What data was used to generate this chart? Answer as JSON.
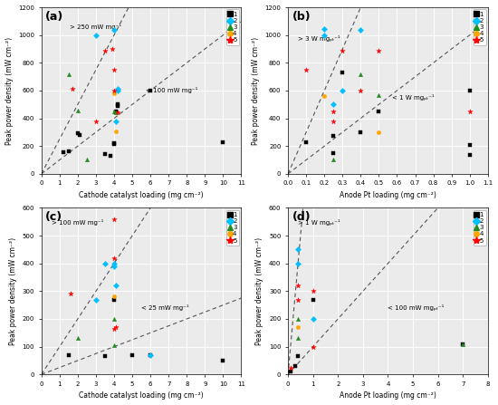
{
  "panels": [
    {
      "label": "(a)",
      "xlabel": "Cathode catalyst loading (mg cm-2)",
      "ylabel": "Peak power density (mW cm-2)",
      "xlim": [
        0,
        11
      ],
      "ylim": [
        0,
        1200
      ],
      "xticks": [
        0,
        1,
        2,
        3,
        4,
        5,
        6,
        7,
        8,
        9,
        10,
        11
      ],
      "yticks": [
        0,
        200,
        400,
        600,
        800,
        1000,
        1200
      ],
      "annotation_high": "> 250 mW mg-1",
      "annotation_low": "< 100 mW mg-1",
      "slope_high": 250,
      "slope_low": 100,
      "ann_high_subscript": false,
      "series": {
        "1": {
          "color": "#000000",
          "marker": "s",
          "data": [
            [
              1.2,
              155
            ],
            [
              1.5,
              165
            ],
            [
              2.0,
              290
            ],
            [
              2.1,
              280
            ],
            [
              3.5,
              140
            ],
            [
              3.8,
              130
            ],
            [
              4.0,
              220
            ],
            [
              4.0,
              215
            ],
            [
              4.1,
              440
            ],
            [
              4.1,
              450
            ],
            [
              4.2,
              490
            ],
            [
              4.2,
              500
            ],
            [
              6.0,
              600
            ],
            [
              10.0,
              225
            ]
          ]
        },
        "2": {
          "color": "#00bfff",
          "marker": "D",
          "data": [
            [
              3.0,
              1000
            ],
            [
              4.0,
              1040
            ],
            [
              4.1,
              380
            ],
            [
              4.2,
              600
            ],
            [
              4.2,
              610
            ]
          ]
        },
        "3": {
          "color": "#228B22",
          "marker": "^",
          "data": [
            [
              1.5,
              720
            ],
            [
              2.0,
              455
            ],
            [
              2.5,
              105
            ],
            [
              4.0,
              450
            ],
            [
              4.1,
              440
            ]
          ]
        },
        "4": {
          "color": "#FFA500",
          "marker": "o",
          "data": [
            [
              4.0,
              580
            ],
            [
              4.1,
              305
            ]
          ]
        },
        "5": {
          "color": "#ff0000",
          "marker": "*",
          "data": [
            [
              1.7,
              615
            ],
            [
              3.0,
              380
            ],
            [
              3.5,
              890
            ],
            [
              3.9,
              900
            ],
            [
              4.0,
              600
            ],
            [
              4.0,
              750
            ],
            [
              4.2,
              440
            ]
          ]
        }
      }
    },
    {
      "label": "(b)",
      "xlabel": "Anode Pt loading (mg cm-2)",
      "ylabel": "Peak power density (mW cm-2)",
      "xlim": [
        0.0,
        1.1
      ],
      "ylim": [
        0,
        1200
      ],
      "xticks": [
        0.0,
        0.1,
        0.2,
        0.3,
        0.4,
        0.5,
        0.6,
        0.7,
        0.8,
        0.9,
        1.0,
        1.1
      ],
      "yticks": [
        0,
        200,
        400,
        600,
        800,
        1000,
        1200
      ],
      "annotation_high": "> 3 W mgPt-1",
      "annotation_low": "< 1 W mgPt-1",
      "slope_high": 3000,
      "slope_low": 1000,
      "ann_high_subscript": true,
      "series": {
        "1": {
          "color": "#000000",
          "marker": "s",
          "data": [
            [
              0.1,
              225
            ],
            [
              0.25,
              270
            ],
            [
              0.25,
              150
            ],
            [
              0.3,
              730
            ],
            [
              0.4,
              300
            ],
            [
              0.5,
              450
            ],
            [
              1.0,
              600
            ],
            [
              1.0,
              210
            ],
            [
              1.0,
              135
            ]
          ]
        },
        "2": {
          "color": "#00bfff",
          "marker": "D",
          "data": [
            [
              0.2,
              1000
            ],
            [
              0.2,
              1045
            ],
            [
              0.25,
              500
            ],
            [
              0.3,
              600
            ],
            [
              0.4,
              1040
            ]
          ]
        },
        "3": {
          "color": "#228B22",
          "marker": "^",
          "data": [
            [
              0.25,
              105
            ],
            [
              0.4,
              720
            ],
            [
              0.5,
              570
            ]
          ]
        },
        "4": {
          "color": "#FFA500",
          "marker": "o",
          "data": [
            [
              0.2,
              560
            ],
            [
              0.5,
              300
            ]
          ]
        },
        "5": {
          "color": "#ff0000",
          "marker": "*",
          "data": [
            [
              0.1,
              750
            ],
            [
              0.25,
              450
            ],
            [
              0.25,
              380
            ],
            [
              0.3,
              890
            ],
            [
              0.4,
              600
            ],
            [
              0.5,
              890
            ],
            [
              1.0,
              450
            ]
          ]
        }
      }
    },
    {
      "label": "(c)",
      "xlabel": "Cathode catalyst loading (mg cm-2)",
      "ylabel": "Peak power density (mW cm-2)",
      "xlim": [
        0,
        11
      ],
      "ylim": [
        0,
        600
      ],
      "xticks": [
        0,
        1,
        2,
        3,
        4,
        5,
        6,
        7,
        8,
        9,
        10,
        11
      ],
      "yticks": [
        0,
        100,
        200,
        300,
        400,
        500,
        600
      ],
      "annotation_high": "> 100 mW mg-1",
      "annotation_low": "< 25 mW mg-1",
      "slope_high": 100,
      "slope_low": 25,
      "ann_high_subscript": false,
      "series": {
        "1": {
          "color": "#000000",
          "marker": "s",
          "data": [
            [
              1.5,
              68
            ],
            [
              3.5,
              65
            ],
            [
              4.0,
              270
            ],
            [
              5.0,
              68
            ],
            [
              6.0,
              70
            ],
            [
              10.0,
              50
            ]
          ]
        },
        "2": {
          "color": "#00bfff",
          "marker": "D",
          "data": [
            [
              3.0,
              270
            ],
            [
              3.5,
              400
            ],
            [
              4.0,
              400
            ],
            [
              4.0,
              390
            ],
            [
              4.1,
              320
            ],
            [
              6.0,
              70
            ]
          ]
        },
        "3": {
          "color": "#228B22",
          "marker": "^",
          "data": [
            [
              2.0,
              130
            ],
            [
              4.0,
              200
            ],
            [
              4.0,
              105
            ]
          ]
        },
        "4": {
          "color": "#FFA500",
          "marker": "o",
          "data": [
            [
              4.0,
              280
            ]
          ]
        },
        "5": {
          "color": "#ff0000",
          "marker": "*",
          "data": [
            [
              1.6,
              290
            ],
            [
              4.0,
              420
            ],
            [
              4.0,
              560
            ],
            [
              4.0,
              165
            ],
            [
              4.1,
              170
            ]
          ]
        }
      }
    },
    {
      "label": "(d)",
      "xlabel": "Anode Pt loading (mg cm-2)",
      "ylabel": "Peak power density (mW cm-2)",
      "xlim": [
        0,
        8
      ],
      "ylim": [
        0,
        600
      ],
      "xticks": [
        0,
        1,
        2,
        3,
        4,
        5,
        6,
        7,
        8
      ],
      "yticks": [
        0,
        100,
        200,
        300,
        400,
        500,
        600
      ],
      "annotation_high": "> 1 W mgPt-1",
      "annotation_low": "< 100 mW mgPt-1",
      "slope_high": 1000,
      "slope_low": 100,
      "ann_high_subscript": true,
      "series": {
        "1": {
          "color": "#000000",
          "marker": "s",
          "data": [
            [
              0.1,
              10
            ],
            [
              0.3,
              30
            ],
            [
              0.4,
              65
            ],
            [
              1.0,
              270
            ],
            [
              7.0,
              110
            ]
          ]
        },
        "2": {
          "color": "#00bfff",
          "marker": "D",
          "data": [
            [
              0.4,
              400
            ],
            [
              0.4,
              450
            ],
            [
              1.0,
              200
            ]
          ]
        },
        "3": {
          "color": "#228B22",
          "marker": "^",
          "data": [
            [
              0.4,
              130
            ],
            [
              0.4,
              200
            ],
            [
              7.0,
              110
            ]
          ]
        },
        "4": {
          "color": "#FFA500",
          "marker": "o",
          "data": [
            [
              0.4,
              170
            ]
          ]
        },
        "5": {
          "color": "#ff0000",
          "marker": "*",
          "data": [
            [
              0.1,
              25
            ],
            [
              0.4,
              320
            ],
            [
              0.4,
              270
            ],
            [
              1.0,
              300
            ],
            [
              1.0,
              100
            ]
          ]
        }
      }
    }
  ],
  "legend_labels": [
    "1",
    "2",
    "3",
    "4",
    "5"
  ],
  "legend_colors": [
    "#000000",
    "#00bfff",
    "#228B22",
    "#FFA500",
    "#ff0000"
  ],
  "legend_markers": [
    "s",
    "D",
    "^",
    "o",
    "*"
  ]
}
